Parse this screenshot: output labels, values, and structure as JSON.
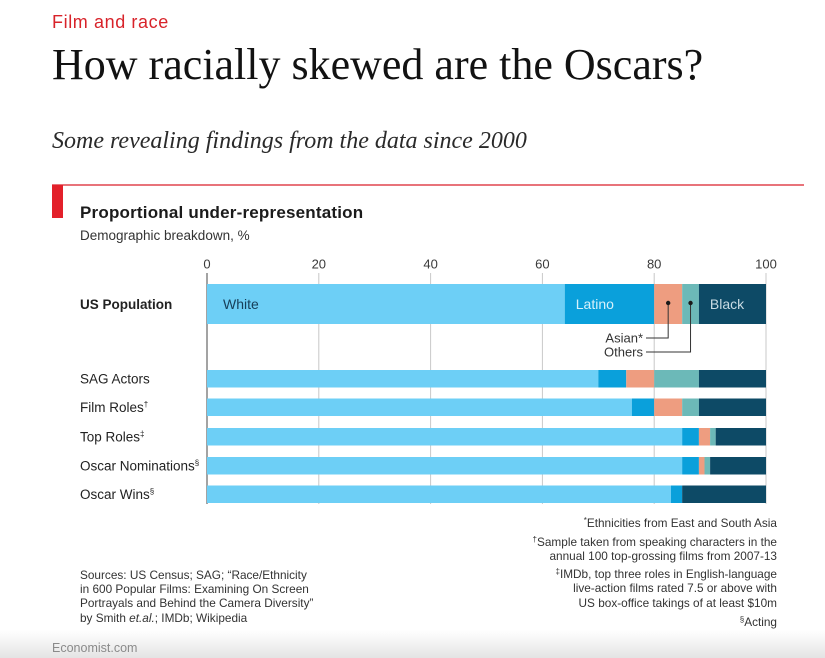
{
  "header": {
    "kicker": "Film and race",
    "title": "How racially skewed are the Oscars?",
    "subtitle": "Some revealing findings from the data since 2000"
  },
  "theme": {
    "accent": "#e3202a",
    "rule": "#e8737a",
    "kicker_color": "#d8232a"
  },
  "chart_data": {
    "type": "bar",
    "orientation": "horizontal",
    "stacked": true,
    "title": "Proportional under-representation",
    "subtitle": "Demographic breakdown, %",
    "xlabel": "",
    "ylabel": "",
    "xlim": [
      0,
      100
    ],
    "xticks": [
      0,
      20,
      40,
      60,
      80,
      100
    ],
    "grid": true,
    "legend": "inline",
    "categories": [
      "US Population",
      "SAG Actors",
      "Film Roles",
      "Top Roles",
      "Oscar Nominations",
      "Oscar Wins"
    ],
    "category_notes": [
      "",
      "",
      "†",
      "‡",
      "§",
      "§"
    ],
    "series": [
      {
        "name": "White",
        "color": "#6dcff6",
        "label_mode": "inline",
        "label_color": "#17405a",
        "values": [
          64,
          70,
          76,
          85,
          85,
          83
        ]
      },
      {
        "name": "Latino",
        "color": "#0aa0db",
        "label_mode": "inline",
        "label_color": "#d6f1fb",
        "values": [
          16,
          5,
          4,
          3,
          3,
          2
        ]
      },
      {
        "name": "Asian*",
        "color": "#ee9d80",
        "label_mode": "callout",
        "label_color": "#333333",
        "values": [
          5,
          5,
          5,
          2,
          1,
          0
        ]
      },
      {
        "name": "Others",
        "color": "#6cb9b8",
        "label_mode": "callout",
        "label_color": "#333333",
        "values": [
          3,
          8,
          3,
          1,
          1,
          0
        ]
      },
      {
        "name": "Black",
        "color": "#0d4a66",
        "label_mode": "inline",
        "label_color": "#c9dbe3",
        "values": [
          12,
          12,
          12,
          9,
          10,
          15
        ]
      }
    ]
  },
  "footnotes": [
    {
      "mark": "*",
      "lines": [
        "Ethnicities from East and South Asia"
      ]
    },
    {
      "mark": "†",
      "lines": [
        "Sample taken from speaking characters in the",
        "annual 100 top-grossing films from 2007-13"
      ]
    },
    {
      "mark": "‡",
      "lines": [
        "IMDb, top three roles in English-language",
        "live-action films rated 7.5 or above with",
        "US box-office takings of at least $10m"
      ]
    },
    {
      "mark": "§",
      "lines": [
        "Acting"
      ]
    }
  ],
  "sources": {
    "lines": [
      "Sources: US Census; SAG; “Race/Ethnicity",
      "in 600 Popular Films: Examining On Screen",
      "Portrayals and Behind the Camera Diversity”"
    ],
    "last_line": {
      "before": "by Smith ",
      "italic": "et.al.",
      "after": "; IMDb; Wikipedia"
    }
  },
  "brand": {
    "site": "Economist.com"
  }
}
